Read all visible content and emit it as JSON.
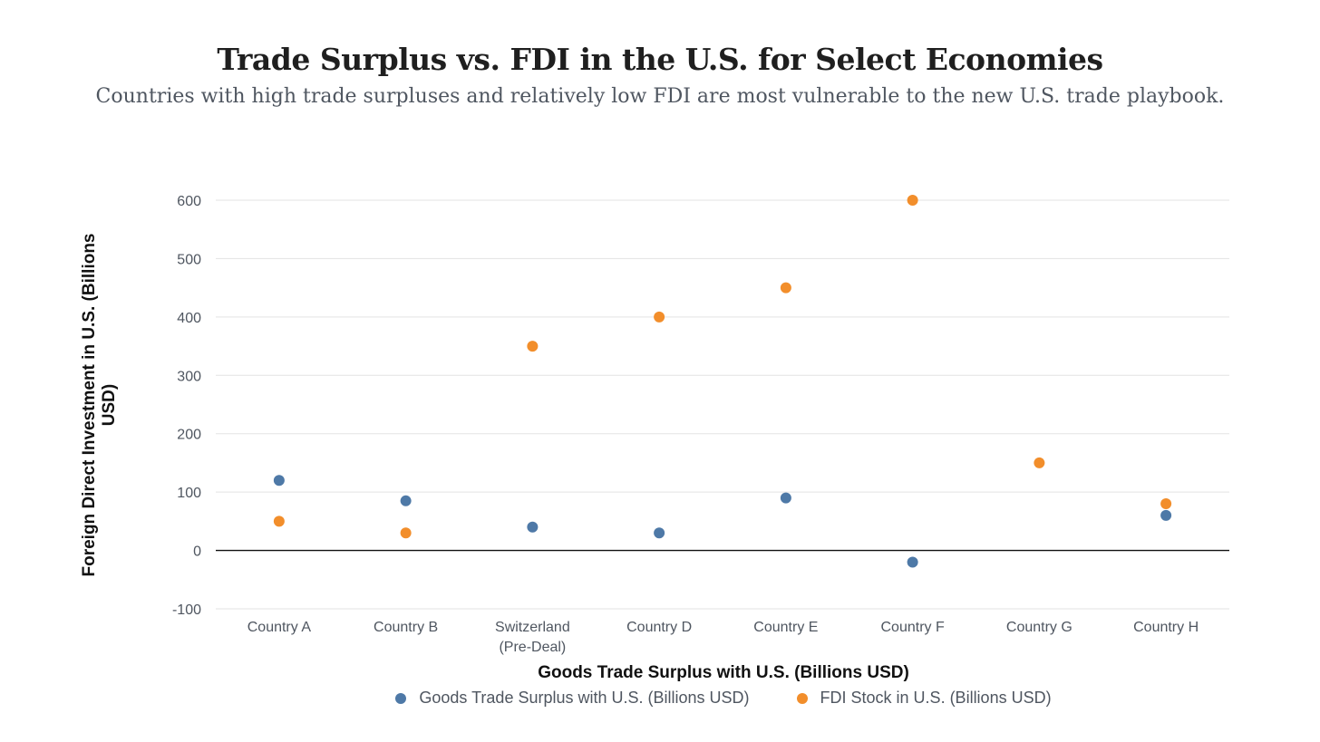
{
  "chart_data": {
    "type": "scatter",
    "title": "Trade Surplus vs. FDI in the U.S. for Select Economies",
    "subtitle": "Countries with high trade surpluses and relatively low FDI are most vulnerable to the new U.S. trade playbook.",
    "xlabel": "Goods Trade Surplus with U.S. (Billions USD)",
    "ylabel": "Foreign Direct Investment in U.S. (Billions USD)",
    "categories": [
      [
        "Country A"
      ],
      [
        "Country B"
      ],
      [
        "Switzerland",
        "(Pre-Deal)"
      ],
      [
        "Country D"
      ],
      [
        "Country E"
      ],
      [
        "Country F"
      ],
      [
        "Country G"
      ],
      [
        "Country H"
      ]
    ],
    "ylim": [
      -100,
      600
    ],
    "yticks": [
      -100,
      0,
      100,
      200,
      300,
      400,
      500,
      600
    ],
    "grid": true,
    "legend_position": "bottom",
    "series": [
      {
        "name": "Goods Trade Surplus with U.S. (Billions USD)",
        "color": "#4e79a7",
        "values": [
          120,
          85,
          40,
          30,
          90,
          -20,
          null,
          60
        ]
      },
      {
        "name": "FDI Stock in U.S. (Billions USD)",
        "color": "#f28e2b",
        "values": [
          50,
          30,
          350,
          400,
          450,
          600,
          150,
          80
        ]
      }
    ]
  }
}
